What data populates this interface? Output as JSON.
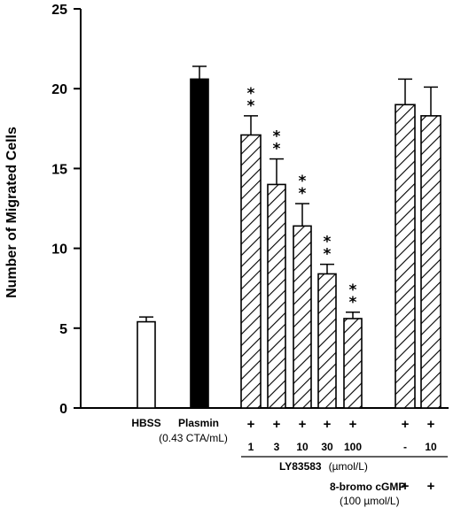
{
  "chart_data": {
    "type": "bar",
    "ylabel": "Number of Migrated Cells",
    "ylim": [
      0,
      25
    ],
    "yticks": [
      0,
      5,
      10,
      15,
      20,
      25
    ],
    "grid": false,
    "bars": [
      {
        "value": 5.4,
        "error": 0.3,
        "fill": "white",
        "stars": ""
      },
      {
        "value": 20.6,
        "error": 0.8,
        "fill": "black",
        "stars": ""
      },
      {
        "value": 17.1,
        "error": 1.2,
        "fill": "hatched",
        "stars": "**"
      },
      {
        "value": 14.0,
        "error": 1.6,
        "fill": "hatched",
        "stars": "**"
      },
      {
        "value": 11.4,
        "error": 1.4,
        "fill": "hatched",
        "stars": "**"
      },
      {
        "value": 8.4,
        "error": 0.6,
        "fill": "hatched",
        "stars": "**"
      },
      {
        "value": 5.6,
        "error": 0.4,
        "fill": "hatched",
        "stars": "**"
      },
      {
        "value": 19.0,
        "error": 1.6,
        "fill": "hatched",
        "stars": ""
      },
      {
        "value": 18.3,
        "error": 1.8,
        "fill": "hatched",
        "stars": ""
      }
    ],
    "labels": {
      "hbss": "HBSS",
      "plasmin": "Plasmin",
      "plasmin_conc": "(0.43 CTA/mL)",
      "plasmin_marks": [
        "+",
        "+",
        "+",
        "+",
        "+",
        "+",
        "+"
      ],
      "ly_doses": [
        "1",
        "3",
        "10",
        "30",
        "100",
        "-",
        "10"
      ],
      "ly_label": "LY83583",
      "ly_unit": "(µmol/L)",
      "bromo_label": "8-bromo cGMP",
      "bromo_marks": [
        "+",
        "+"
      ],
      "bromo_conc": "(100 µmol/L)"
    }
  }
}
